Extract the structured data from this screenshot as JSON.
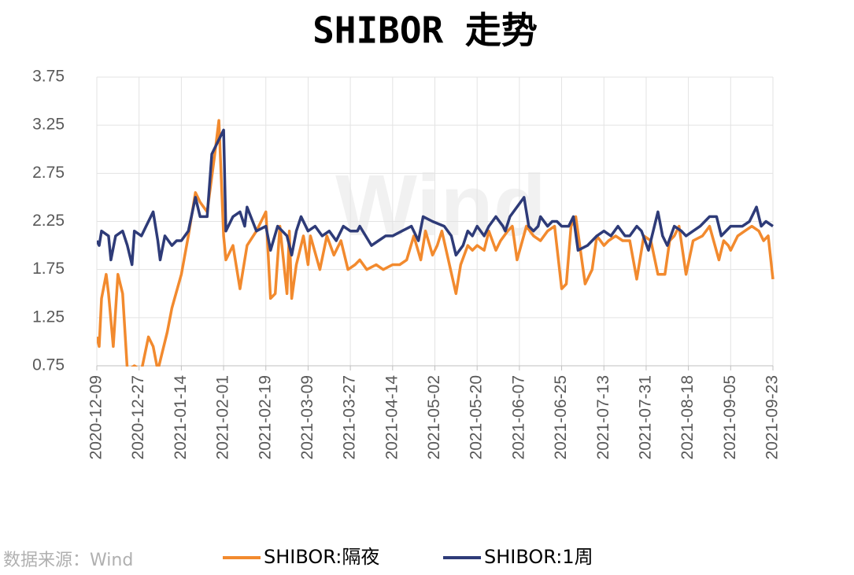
{
  "chart_data": {
    "type": "line",
    "title": "SHIBOR 走势",
    "source": "数据来源：Wind",
    "watermark": "Wind",
    "xlim": [
      "2020-12-09",
      "2021-09-23"
    ],
    "xticks": [
      "2020-12-09",
      "2020-12-27",
      "2021-01-14",
      "2021-02-01",
      "2021-02-19",
      "2021-03-09",
      "2021-03-27",
      "2021-04-14",
      "2021-05-02",
      "2021-05-20",
      "2021-06-07",
      "2021-06-25",
      "2021-07-13",
      "2021-07-31",
      "2021-08-18",
      "2021-09-05",
      "2021-09-23"
    ],
    "ylim": [
      0.75,
      3.75
    ],
    "yticks": [
      0.75,
      1.25,
      1.75,
      2.25,
      2.75,
      3.25,
      3.75
    ],
    "grid": true,
    "series": [
      {
        "name": "SHIBOR:隔夜",
        "color": "#f28a2e",
        "x": [
          "2020-12-09",
          "2020-12-10",
          "2020-12-11",
          "2020-12-13",
          "2020-12-14",
          "2020-12-16",
          "2020-12-18",
          "2020-12-20",
          "2020-12-22",
          "2020-12-25",
          "2020-12-28",
          "2020-12-31",
          "2021-01-02",
          "2021-01-04",
          "2021-01-06",
          "2021-01-08",
          "2021-01-10",
          "2021-01-14",
          "2021-01-17",
          "2021-01-20",
          "2021-01-22",
          "2021-01-25",
          "2021-01-28",
          "2021-01-30",
          "2021-02-01",
          "2021-02-02",
          "2021-02-05",
          "2021-02-08",
          "2021-02-11",
          "2021-02-15",
          "2021-02-19",
          "2021-02-21",
          "2021-02-23",
          "2021-02-25",
          "2021-02-28",
          "2021-03-01",
          "2021-03-02",
          "2021-03-04",
          "2021-03-07",
          "2021-03-09",
          "2021-03-10",
          "2021-03-14",
          "2021-03-17",
          "2021-03-20",
          "2021-03-23",
          "2021-03-26",
          "2021-03-29",
          "2021-03-31",
          "2021-04-03",
          "2021-04-07",
          "2021-04-10",
          "2021-04-14",
          "2021-04-17",
          "2021-04-20",
          "2021-04-23",
          "2021-04-26",
          "2021-04-28",
          "2021-05-01",
          "2021-05-03",
          "2021-05-05",
          "2021-05-11",
          "2021-05-13",
          "2021-05-16",
          "2021-05-18",
          "2021-05-20",
          "2021-05-23",
          "2021-05-25",
          "2021-05-28",
          "2021-05-30",
          "2021-06-02",
          "2021-06-04",
          "2021-06-06",
          "2021-06-10",
          "2021-06-13",
          "2021-06-16",
          "2021-06-19",
          "2021-06-22",
          "2021-06-25",
          "2021-06-27",
          "2021-06-29",
          "2021-07-01",
          "2021-07-05",
          "2021-07-08",
          "2021-07-10",
          "2021-07-13",
          "2021-07-15",
          "2021-07-18",
          "2021-07-21",
          "2021-07-24",
          "2021-07-27",
          "2021-07-30",
          "2021-08-02",
          "2021-08-05",
          "2021-08-08",
          "2021-08-10",
          "2021-08-12",
          "2021-08-14",
          "2021-08-17",
          "2021-08-20",
          "2021-08-24",
          "2021-08-27",
          "2021-08-31",
          "2021-09-02",
          "2021-09-04",
          "2021-09-05",
          "2021-09-08",
          "2021-09-11",
          "2021-09-14",
          "2021-09-17",
          "2021-09-19",
          "2021-09-21",
          "2021-09-23"
        ],
        "values": [
          1.05,
          0.95,
          1.45,
          1.7,
          1.5,
          0.95,
          1.7,
          1.5,
          0.7,
          0.75,
          0.7,
          1.05,
          0.95,
          0.7,
          0.9,
          1.1,
          1.35,
          1.7,
          2.1,
          2.55,
          2.45,
          2.35,
          2.9,
          3.3,
          2.1,
          1.85,
          2.0,
          1.55,
          2.0,
          2.15,
          2.35,
          1.45,
          1.5,
          2.2,
          1.5,
          2.15,
          1.45,
          1.8,
          2.1,
          1.8,
          2.1,
          1.75,
          2.1,
          1.9,
          2.05,
          1.75,
          1.8,
          1.85,
          1.75,
          1.8,
          1.75,
          1.8,
          1.8,
          1.85,
          2.1,
          1.85,
          2.15,
          1.9,
          2.0,
          2.15,
          1.5,
          1.8,
          2.0,
          1.95,
          2.0,
          1.95,
          2.15,
          1.95,
          2.05,
          2.15,
          2.2,
          1.85,
          2.2,
          2.1,
          2.05,
          2.15,
          2.2,
          1.55,
          1.6,
          2.2,
          2.3,
          1.6,
          1.75,
          2.1,
          2.0,
          2.05,
          2.1,
          2.05,
          2.05,
          1.65,
          2.1,
          2.05,
          1.7,
          1.7,
          2.05,
          2.1,
          2.2,
          1.7,
          2.05,
          2.1,
          2.2,
          1.85,
          2.05,
          2.0,
          1.95,
          2.1,
          2.15,
          2.2,
          2.15,
          2.05,
          2.1,
          1.65
        ]
      },
      {
        "name": "SHIBOR:1周",
        "color": "#2e3b78",
        "x": [
          "2020-12-09",
          "2020-12-10",
          "2020-12-11",
          "2020-12-14",
          "2020-12-15",
          "2020-12-17",
          "2020-12-20",
          "2020-12-22",
          "2020-12-24",
          "2020-12-25",
          "2020-12-28",
          "2020-12-30",
          "2021-01-02",
          "2021-01-04",
          "2021-01-05",
          "2021-01-07",
          "2021-01-10",
          "2021-01-12",
          "2021-01-14",
          "2021-01-17",
          "2021-01-20",
          "2021-01-22",
          "2021-01-25",
          "2021-01-27",
          "2021-01-29",
          "2021-02-01",
          "2021-02-02",
          "2021-02-05",
          "2021-02-08",
          "2021-02-10",
          "2021-02-11",
          "2021-02-15",
          "2021-02-19",
          "2021-02-21",
          "2021-02-24",
          "2021-02-26",
          "2021-02-28",
          "2021-03-02",
          "2021-03-04",
          "2021-03-06",
          "2021-03-09",
          "2021-03-12",
          "2021-03-15",
          "2021-03-18",
          "2021-03-21",
          "2021-03-24",
          "2021-03-27",
          "2021-03-30",
          "2021-03-31",
          "2021-04-05",
          "2021-04-08",
          "2021-04-11",
          "2021-04-14",
          "2021-04-18",
          "2021-04-22",
          "2021-04-25",
          "2021-04-27",
          "2021-05-01",
          "2021-05-06",
          "2021-05-09",
          "2021-05-11",
          "2021-05-14",
          "2021-05-16",
          "2021-05-18",
          "2021-05-20",
          "2021-05-23",
          "2021-05-25",
          "2021-05-28",
          "2021-05-31",
          "2021-06-01",
          "2021-06-03",
          "2021-06-09",
          "2021-06-11",
          "2021-06-13",
          "2021-06-15",
          "2021-06-16",
          "2021-06-19",
          "2021-06-21",
          "2021-06-23",
          "2021-06-25",
          "2021-06-28",
          "2021-06-30",
          "2021-07-02",
          "2021-07-06",
          "2021-07-10",
          "2021-07-13",
          "2021-07-16",
          "2021-07-19",
          "2021-07-22",
          "2021-07-24",
          "2021-07-27",
          "2021-07-29",
          "2021-08-01",
          "2021-08-05",
          "2021-08-07",
          "2021-08-09",
          "2021-08-12",
          "2021-08-15",
          "2021-08-17",
          "2021-08-20",
          "2021-08-23",
          "2021-08-27",
          "2021-08-30",
          "2021-09-01",
          "2021-09-05",
          "2021-09-08",
          "2021-09-10",
          "2021-09-13",
          "2021-09-16",
          "2021-09-18",
          "2021-09-20",
          "2021-09-23"
        ],
        "values": [
          2.05,
          2.0,
          2.15,
          2.1,
          1.85,
          2.1,
          2.15,
          2.0,
          1.8,
          2.15,
          2.1,
          2.2,
          2.35,
          2.05,
          1.85,
          2.1,
          2.0,
          2.05,
          2.05,
          2.15,
          2.5,
          2.3,
          2.3,
          2.95,
          3.05,
          3.2,
          2.15,
          2.3,
          2.35,
          2.2,
          2.4,
          2.15,
          2.2,
          1.95,
          2.2,
          2.15,
          2.1,
          1.9,
          2.15,
          2.3,
          2.15,
          2.2,
          2.1,
          2.15,
          2.05,
          2.2,
          2.15,
          2.15,
          2.2,
          2.0,
          2.05,
          2.1,
          2.1,
          2.15,
          2.2,
          2.05,
          2.3,
          2.25,
          2.2,
          2.1,
          1.9,
          2.0,
          2.15,
          2.1,
          2.2,
          2.1,
          2.2,
          2.3,
          2.2,
          2.15,
          2.3,
          2.5,
          2.2,
          2.15,
          2.2,
          2.3,
          2.2,
          2.25,
          2.25,
          2.2,
          2.2,
          2.3,
          1.95,
          2.0,
          2.1,
          2.15,
          2.1,
          2.2,
          2.1,
          2.1,
          2.2,
          2.15,
          1.95,
          2.35,
          2.1,
          2.0,
          2.2,
          2.15,
          2.1,
          2.15,
          2.2,
          2.3,
          2.3,
          2.1,
          2.2,
          2.2,
          2.2,
          2.25,
          2.4,
          2.2,
          2.25,
          2.2
        ]
      }
    ]
  }
}
